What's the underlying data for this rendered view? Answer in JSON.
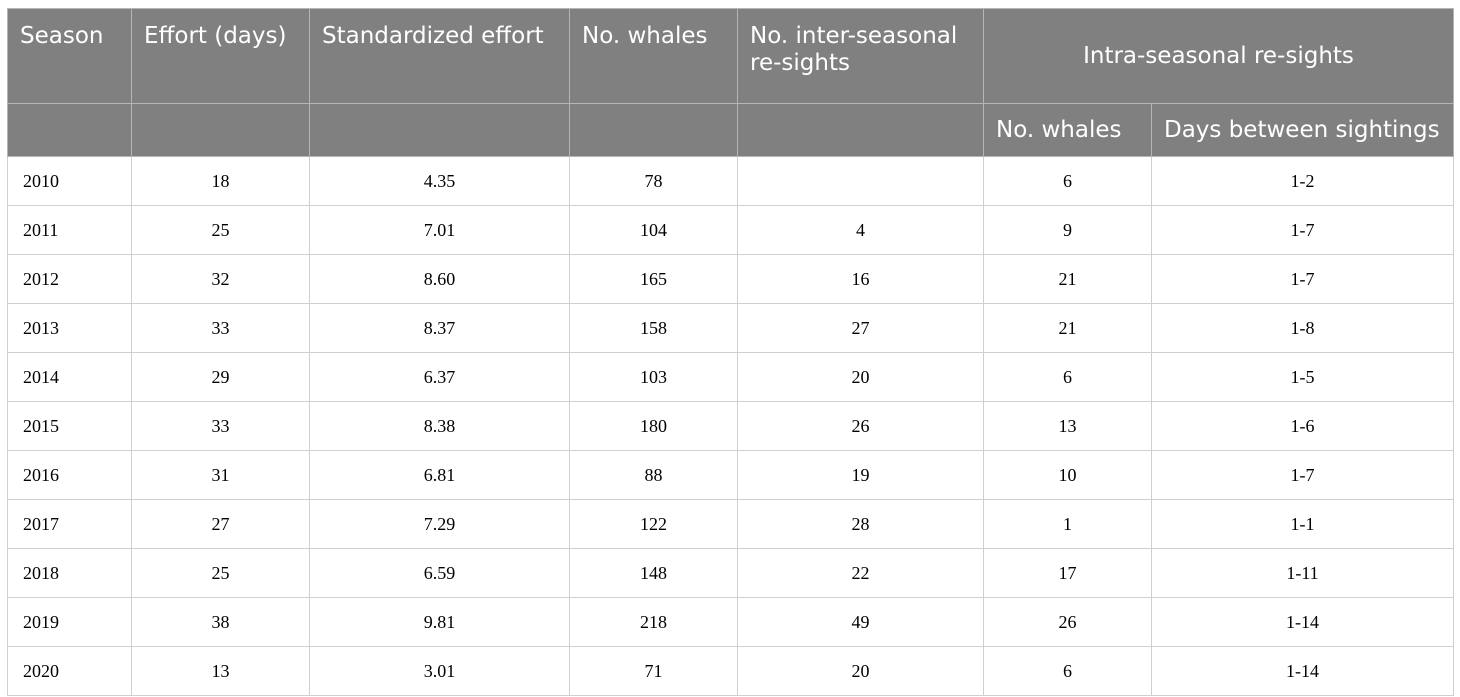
{
  "headers": {
    "season": "Season",
    "effort": "Effort (days)",
    "standardized": "Standardized effort",
    "whales": "No. whales",
    "inter_line1": "No. inter-seasonal",
    "inter_line2": "re-sights",
    "intra_group": "Intra-seasonal re-sights",
    "intra_whales": "No. whales",
    "intra_days": "Days between sightings"
  },
  "rows": [
    {
      "season": "2010",
      "effort": "18",
      "std": "4.35",
      "whales": "78",
      "inter": "",
      "intra_whales": "6",
      "days": "1-2"
    },
    {
      "season": "2011",
      "effort": "25",
      "std": "7.01",
      "whales": "104",
      "inter": "4",
      "intra_whales": "9",
      "days": "1-7"
    },
    {
      "season": "2012",
      "effort": "32",
      "std": "8.60",
      "whales": "165",
      "inter": "16",
      "intra_whales": "21",
      "days": "1-7"
    },
    {
      "season": "2013",
      "effort": "33",
      "std": "8.37",
      "whales": "158",
      "inter": "27",
      "intra_whales": "21",
      "days": "1-8"
    },
    {
      "season": "2014",
      "effort": "29",
      "std": "6.37",
      "whales": "103",
      "inter": "20",
      "intra_whales": "6",
      "days": "1-5"
    },
    {
      "season": "2015",
      "effort": "33",
      "std": "8.38",
      "whales": "180",
      "inter": "26",
      "intra_whales": "13",
      "days": "1-6"
    },
    {
      "season": "2016",
      "effort": "31",
      "std": "6.81",
      "whales": "88",
      "inter": "19",
      "intra_whales": "10",
      "days": "1-7"
    },
    {
      "season": "2017",
      "effort": "27",
      "std": "7.29",
      "whales": "122",
      "inter": "28",
      "intra_whales": "1",
      "days": "1-1"
    },
    {
      "season": "2018",
      "effort": "25",
      "std": "6.59",
      "whales": "148",
      "inter": "22",
      "intra_whales": "17",
      "days": "1-11"
    },
    {
      "season": "2019",
      "effort": "38",
      "std": "9.81",
      "whales": "218",
      "inter": "49",
      "intra_whales": "26",
      "days": "1-14"
    },
    {
      "season": "2020",
      "effort": "13",
      "std": "3.01",
      "whales": "71",
      "inter": "20",
      "intra_whales": "6",
      "days": "1-14"
    }
  ]
}
